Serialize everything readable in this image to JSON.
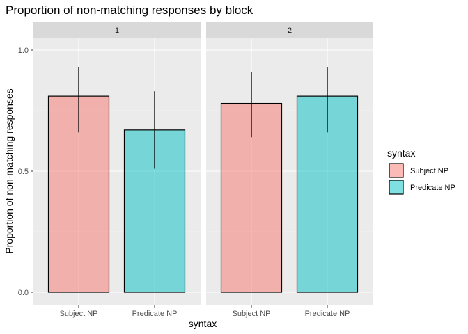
{
  "chart_data": {
    "type": "bar",
    "title": "Proportion of non-matching responses by block",
    "xlabel": "syntax",
    "ylabel": "Proportion of non-matching responses",
    "ylim": [
      0,
      1.0
    ],
    "yticks": [
      0.0,
      0.5,
      1.0
    ],
    "ytick_labels": [
      "0.0",
      "0.5",
      "1.0"
    ],
    "grid": true,
    "legend_position": "right",
    "legend_title": "syntax",
    "categories": [
      "Subject NP",
      "Predicate NP"
    ],
    "colors": {
      "Subject NP": "#F8766D",
      "Predicate NP": "#00BFC4"
    },
    "panel_background": "#EBEBEB",
    "strip_background": "#D9D9D9",
    "facets": [
      {
        "label": "1",
        "bars": [
          {
            "category": "Subject NP",
            "value": 0.81,
            "lower": 0.66,
            "upper": 0.93
          },
          {
            "category": "Predicate NP",
            "value": 0.67,
            "lower": 0.51,
            "upper": 0.83
          }
        ]
      },
      {
        "label": "2",
        "bars": [
          {
            "category": "Subject NP",
            "value": 0.78,
            "lower": 0.64,
            "upper": 0.91
          },
          {
            "category": "Predicate NP",
            "value": 0.81,
            "lower": 0.66,
            "upper": 0.93
          }
        ]
      }
    ]
  }
}
